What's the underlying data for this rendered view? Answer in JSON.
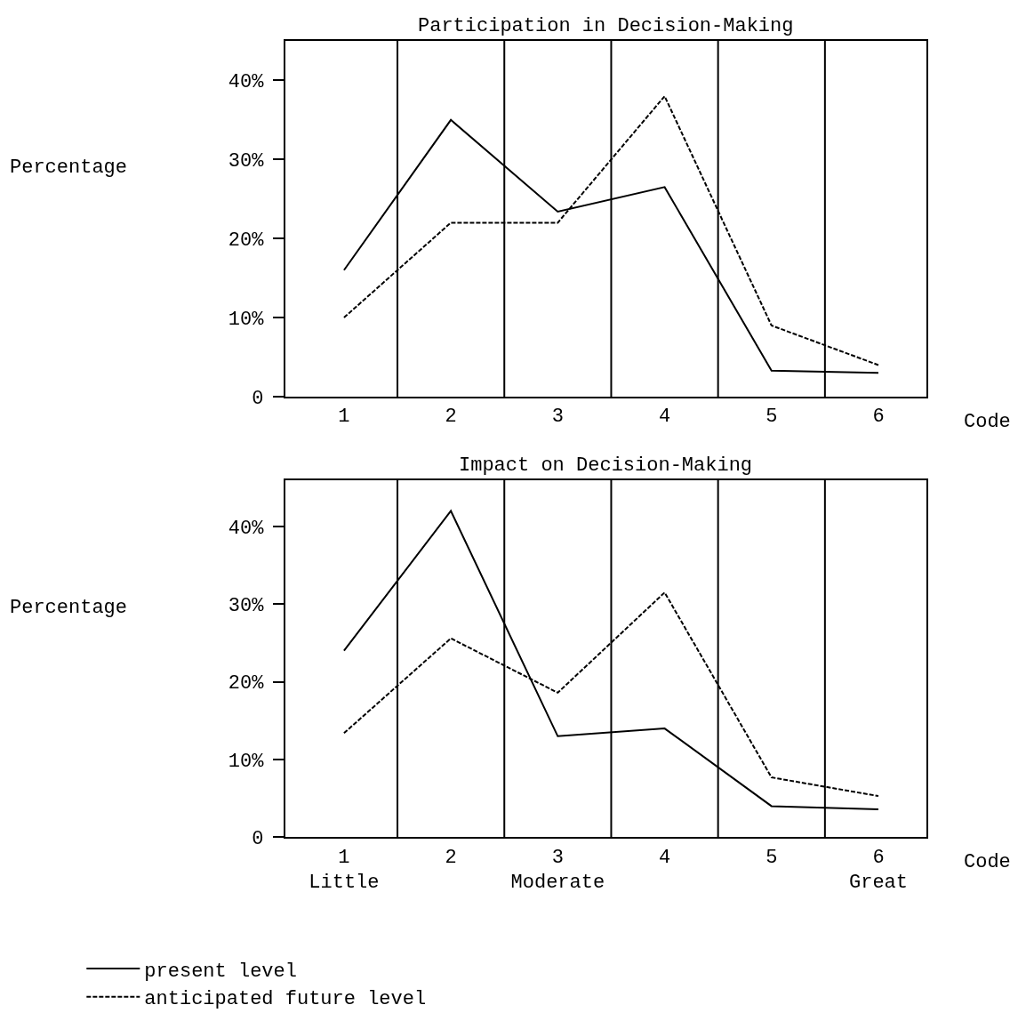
{
  "chart_data": [
    {
      "type": "line",
      "title": "Participation in Decision-Making",
      "xlabel": "Code",
      "ylabel": "Percentage",
      "x": [
        1,
        2,
        3,
        4,
        5,
        6
      ],
      "xlim": [
        0.45,
        6.45
      ],
      "xticks": [
        1,
        2,
        3,
        4,
        5,
        6
      ],
      "ylim": [
        0,
        45
      ],
      "yticks": [
        {
          "value": 0,
          "label": "0"
        },
        {
          "value": 10,
          "label": "10%"
        },
        {
          "value": 20,
          "label": "20%"
        },
        {
          "value": 30,
          "label": "30%"
        },
        {
          "value": 40,
          "label": "40%"
        }
      ],
      "series": [
        {
          "name": "present level",
          "color": "#000000",
          "line_style": "solid",
          "values": [
            16,
            35,
            23.4,
            26.5,
            3.3,
            3
          ]
        },
        {
          "name": "anticipated future level",
          "color": "#000000",
          "line_style": "dashed",
          "values": [
            10,
            22,
            22,
            38,
            9,
            4
          ]
        }
      ],
      "ref_lines": [
        {
          "axis": "x",
          "value": 1.5,
          "color": "#000000"
        },
        {
          "axis": "x",
          "value": 2.5,
          "color": "#000000"
        },
        {
          "axis": "x",
          "value": 3.5,
          "color": "#000000"
        },
        {
          "axis": "x",
          "value": 4.5,
          "color": "#000000"
        },
        {
          "axis": "x",
          "value": 5.5,
          "color": "#000000"
        }
      ],
      "legend": "bottom left"
    },
    {
      "type": "line",
      "title": "Impact on Decision-Making",
      "xlabel": "Code",
      "ylabel": "Percentage",
      "x": [
        1,
        2,
        3,
        4,
        5,
        6
      ],
      "xlim": [
        0.45,
        6.45
      ],
      "xticks": [
        {
          "value": 1,
          "label": "1\nLittle"
        },
        2,
        {
          "value": 3,
          "label": "3\nModerate"
        },
        4,
        5,
        {
          "value": 6,
          "label": "6\nGreat"
        }
      ],
      "ylim": [
        0,
        46
      ],
      "yticks": [
        {
          "value": 0,
          "label": "0"
        },
        {
          "value": 10,
          "label": "10%"
        },
        {
          "value": 20,
          "label": "20%"
        },
        {
          "value": 30,
          "label": "30%"
        },
        {
          "value": 40,
          "label": "40%"
        }
      ],
      "series": [
        {
          "name": "present level",
          "color": "#000000",
          "line_style": "solid",
          "values": [
            24,
            42,
            13,
            14,
            4,
            3.6
          ]
        },
        {
          "name": "anticipated future level",
          "color": "#000000",
          "line_style": "dashed",
          "values": [
            13.4,
            25.6,
            18.6,
            31.5,
            7.7,
            5.3
          ]
        }
      ],
      "ref_lines": [
        {
          "axis": "x",
          "value": 1.5,
          "color": "#000000"
        },
        {
          "axis": "x",
          "value": 2.5,
          "color": "#000000"
        },
        {
          "axis": "x",
          "value": 3.5,
          "color": "#000000"
        },
        {
          "axis": "x",
          "value": 4.5,
          "color": "#000000"
        },
        {
          "axis": "x",
          "value": 5.5,
          "color": "#000000"
        }
      ],
      "legend": "bottom left"
    }
  ]
}
